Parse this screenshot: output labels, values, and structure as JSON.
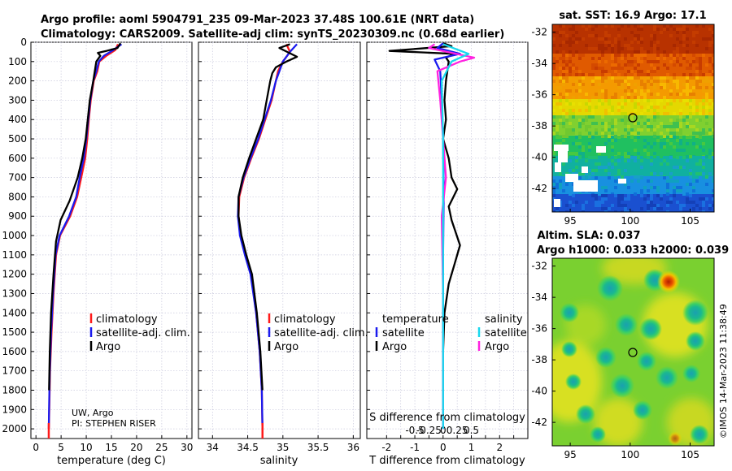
{
  "header": {
    "line1": "Argo profile: aoml 5904791_235 09-Mar-2023 37.48S 100.61E (NRT data)",
    "line2": "Climatology: CARS2009. Satellite-adj clim: synTS_20230309.nc (0.68d earlier)"
  },
  "colors": {
    "climatology": "#ff1a1a",
    "satellite_adj": "#1a1aee",
    "argo": "#000000",
    "sat_t": "#18d8ee",
    "sat_s": "#ff22e0"
  },
  "depth_axis": {
    "ticks": [
      0,
      100,
      200,
      300,
      400,
      500,
      600,
      700,
      800,
      900,
      1000,
      1100,
      1200,
      1300,
      1400,
      1500,
      1600,
      1700,
      1800,
      1900,
      2000
    ]
  },
  "chart_data": [
    {
      "type": "line",
      "id": "temperature",
      "xlabel": "temperature (deg C)",
      "ylabel": "depth",
      "xlim": [
        -1,
        31
      ],
      "ylim": [
        2050,
        0
      ],
      "xticks": [
        0,
        5,
        10,
        15,
        20,
        25,
        30
      ],
      "series": [
        {
          "name": "climatology",
          "x": [
            16.3,
            15.8,
            14.0,
            12.6,
            12.2,
            11.5,
            10.9,
            10.5,
            10.2,
            9.8,
            9.0,
            8.2,
            6.8,
            4.8,
            4.0,
            3.5,
            3.1,
            2.8,
            2.65,
            2.55
          ],
          "y": [
            10,
            40,
            70,
            100,
            150,
            200,
            300,
            400,
            500,
            600,
            700,
            800,
            900,
            1000,
            1100,
            1300,
            1500,
            1700,
            1900,
            2000
          ]
        },
        {
          "name": "satellite-adj. clim.",
          "x": [
            17.0,
            15.4,
            13.5,
            12.5,
            12.0,
            11.4,
            10.8,
            10.4,
            10.0,
            9.5,
            8.7,
            8.0,
            6.6,
            4.7,
            3.9,
            3.4,
            3.0,
            2.75,
            2.6,
            2.55
          ],
          "y": [
            10,
            40,
            70,
            100,
            150,
            200,
            300,
            400,
            500,
            600,
            700,
            800,
            900,
            1000,
            1100,
            1300,
            1500,
            1700,
            1900,
            2000
          ]
        },
        {
          "name": "Argo",
          "x": [
            16.8,
            16.2,
            14.0,
            12.3,
            12.8,
            12.0,
            11.4,
            10.7,
            10.3,
            9.9,
            9.2,
            8.3,
            6.7,
            4.9,
            4.0,
            3.5,
            3.0,
            2.75,
            2.6
          ],
          "y": [
            5,
            30,
            45,
            55,
            70,
            100,
            200,
            300,
            400,
            500,
            600,
            700,
            820,
            920,
            1030,
            1200,
            1400,
            1600,
            1800
          ]
        }
      ]
    },
    {
      "type": "line",
      "id": "salinity",
      "xlabel": "salinity",
      "ylabel": "depth",
      "xlim": [
        33.8,
        36.1
      ],
      "ylim": [
        2050,
        0
      ],
      "xticks": [
        34,
        34.5,
        35,
        35.5,
        36
      ],
      "series": [
        {
          "name": "climatology",
          "x": [
            35.05,
            35.1,
            35.0,
            34.93,
            34.9,
            34.84,
            34.75,
            34.66,
            34.55,
            34.45,
            34.38,
            34.37,
            34.4,
            34.47,
            34.55,
            34.62,
            34.67,
            34.7,
            34.71
          ],
          "y": [
            10,
            50,
            100,
            150,
            200,
            300,
            400,
            500,
            600,
            700,
            800,
            900,
            1000,
            1100,
            1200,
            1400,
            1600,
            1800,
            2000
          ]
        },
        {
          "name": "satellite-adj. clim.",
          "x": [
            35.2,
            35.1,
            35.0,
            34.95,
            34.9,
            34.83,
            34.74,
            34.65,
            34.54,
            34.44,
            34.37,
            34.36,
            34.39,
            34.46,
            34.54,
            34.62,
            34.67,
            34.7,
            34.71
          ],
          "y": [
            10,
            50,
            100,
            150,
            200,
            300,
            400,
            500,
            600,
            700,
            800,
            900,
            1000,
            1100,
            1200,
            1400,
            1600,
            1800,
            2000
          ]
        },
        {
          "name": "Argo",
          "x": [
            35.1,
            34.95,
            35.2,
            35.05,
            34.9,
            34.85,
            34.82,
            34.77,
            34.72,
            34.62,
            34.52,
            34.43,
            34.37,
            34.37,
            34.41,
            34.48,
            34.56,
            34.63,
            34.68,
            34.71
          ],
          "y": [
            10,
            30,
            75,
            100,
            130,
            160,
            200,
            300,
            400,
            500,
            600,
            700,
            800,
            900,
            1000,
            1100,
            1200,
            1400,
            1600,
            1800
          ]
        }
      ]
    },
    {
      "type": "line",
      "id": "difference",
      "xlabel": "T difference from climatology",
      "x2label": "S difference from climatology",
      "xlim": [
        -2.7,
        3.0
      ],
      "ylim": [
        2050,
        0
      ],
      "xticks": [
        -2,
        -1.5,
        -1,
        -0.5,
        0,
        0.5,
        1,
        1.5,
        2,
        2.5
      ],
      "xticklabels": [
        "-2",
        "",
        "-1",
        "",
        "0",
        "",
        "1",
        "",
        "2",
        ""
      ],
      "x2ticklabels": [
        "-0.5",
        "-0.25",
        "0",
        "0.25",
        "0.5"
      ],
      "x2tickpos": [
        -1,
        -0.5,
        0,
        0.5,
        1
      ],
      "series": [
        {
          "name": "temperature Argo",
          "x": [
            0.0,
            0.3,
            -1.9,
            0.4,
            0.1,
            0.2,
            0.1,
            0.05,
            0.1,
            0.0,
            0.2,
            0.3,
            0.5,
            0.2,
            0.3,
            0.6,
            0.4,
            0.2,
            0.05,
            0.0,
            0.0
          ],
          "y": [
            5,
            20,
            45,
            60,
            80,
            100,
            200,
            300,
            400,
            500,
            600,
            700,
            760,
            850,
            920,
            1050,
            1150,
            1250,
            1400,
            1600,
            1900
          ]
        },
        {
          "name": "temperature satellite",
          "x": [
            0.0,
            -0.2,
            0.6,
            -0.3,
            -0.1,
            -0.05,
            0.0,
            0.02,
            0.0,
            0.0,
            0.0
          ],
          "y": [
            5,
            30,
            60,
            90,
            150,
            300,
            500,
            800,
            1100,
            1500,
            2000
          ]
        },
        {
          "name": "salinity Argo",
          "x": [
            -0.3,
            -0.5,
            1.1,
            0.6,
            -0.2,
            -0.1,
            0.0,
            0.1,
            -0.05,
            0.0,
            0.0
          ],
          "y": [
            10,
            30,
            80,
            100,
            150,
            300,
            500,
            700,
            900,
            1300,
            2000
          ]
        },
        {
          "name": "salinity satellite",
          "x": [
            0.0,
            0.9,
            0.3,
            -0.05,
            0.0,
            0.0,
            0.0
          ],
          "y": [
            10,
            60,
            100,
            200,
            500,
            1000,
            2000
          ]
        }
      ]
    },
    {
      "type": "heatmap",
      "id": "sst_map",
      "title": "sat. SST: 16.9 Argo: 17.1",
      "xlim": [
        93.5,
        107
      ],
      "ylim": [
        -43.5,
        -31.5
      ],
      "xticks": [
        95,
        100,
        105
      ],
      "yticks": [
        -32,
        -34,
        -36,
        -38,
        -40,
        -42
      ],
      "argo_position": {
        "lon": 100.61,
        "lat": -37.48
      }
    },
    {
      "type": "heatmap",
      "id": "sla_map",
      "title1": "Altim. SLA: 0.037",
      "title2": "Argo h1000: 0.033 h2000: 0.039",
      "xlim": [
        93.5,
        107
      ],
      "ylim": [
        -43.5,
        -31.5
      ],
      "xticks": [
        95,
        100,
        105
      ],
      "yticks": [
        -32,
        -34,
        -36,
        -38,
        -40,
        -42
      ],
      "argo_position": {
        "lon": 100.61,
        "lat": -37.48
      }
    }
  ],
  "legend_profile": {
    "climatology": "climatology",
    "satellite": "satellite-adj. clim.",
    "argo": "Argo"
  },
  "legend_difference": {
    "temperature": "temperature",
    "salinity": "salinity",
    "satellite": "satellite",
    "argo": "Argo"
  },
  "credits": {
    "line1": "UW, Argo",
    "line2": "PI: STEPHEN RISER"
  },
  "watermark": "©IMOS 14-Mar-2023 11:38:49"
}
